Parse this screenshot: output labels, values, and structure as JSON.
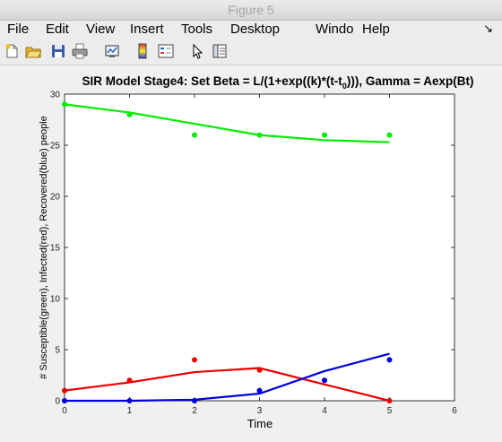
{
  "window": {
    "title": "Figure 5"
  },
  "menu": [
    "File",
    "Edit",
    "View",
    "Insert",
    "Tools",
    "Desktop",
    "Windo",
    "Help"
  ],
  "toolbar_icons": [
    "new-figure-icon",
    "open-file-icon",
    "save-icon",
    "print-icon",
    "link-plot-icon",
    "colorbar-icon",
    "legend-icon",
    "pointer-icon",
    "property-inspector-icon"
  ],
  "colors": {
    "susceptible": "#00ee00",
    "infected": "#ee0000",
    "recovered": "#0000dd"
  },
  "chart_data": {
    "type": "line",
    "title_main": "SIR Model Stage4: Set Beta = L/(1+exp((k)*(t-t",
    "title_sub": "0",
    "title_end": "))), Gamma = Aexp(Bt)",
    "xlabel": "Time",
    "ylabel": "# Susceptible(green), Infected(red), Recovered(blue) people",
    "xlim": [
      0,
      6
    ],
    "ylim": [
      0,
      30
    ],
    "xticks": [
      "0",
      "1",
      "2",
      "3",
      "4",
      "5",
      "6"
    ],
    "yticks": [
      "0",
      "5",
      "10",
      "15",
      "20",
      "25",
      "30"
    ],
    "grid": false,
    "series": [
      {
        "color": "#00ee00",
        "points": [
          [
            0,
            29
          ],
          [
            1,
            28
          ],
          [
            2,
            26
          ],
          [
            3,
            26
          ],
          [
            4,
            26
          ],
          [
            5,
            26
          ]
        ],
        "line": [
          [
            0,
            29
          ],
          [
            1,
            28.2
          ],
          [
            2,
            27.1
          ],
          [
            3,
            26
          ],
          [
            4,
            25.5
          ],
          [
            5,
            25.3
          ]
        ]
      },
      {
        "color": "#ee0000",
        "points": [
          [
            0,
            1
          ],
          [
            1,
            2
          ],
          [
            2,
            4
          ],
          [
            3,
            3
          ],
          [
            4,
            2
          ],
          [
            5,
            0
          ]
        ],
        "line": [
          [
            0,
            1
          ],
          [
            1,
            1.8
          ],
          [
            2,
            2.8
          ],
          [
            3,
            3.2
          ],
          [
            4,
            1.6
          ],
          [
            5,
            0
          ]
        ]
      },
      {
        "color": "#0000dd",
        "points": [
          [
            0,
            0
          ],
          [
            1,
            0
          ],
          [
            2,
            0
          ],
          [
            3,
            1
          ],
          [
            4,
            2
          ],
          [
            5,
            4
          ]
        ],
        "line": [
          [
            0,
            0
          ],
          [
            1,
            0
          ],
          [
            2,
            0.1
          ],
          [
            3,
            0.7
          ],
          [
            4,
            2.9
          ],
          [
            5,
            4.6
          ]
        ]
      }
    ]
  }
}
